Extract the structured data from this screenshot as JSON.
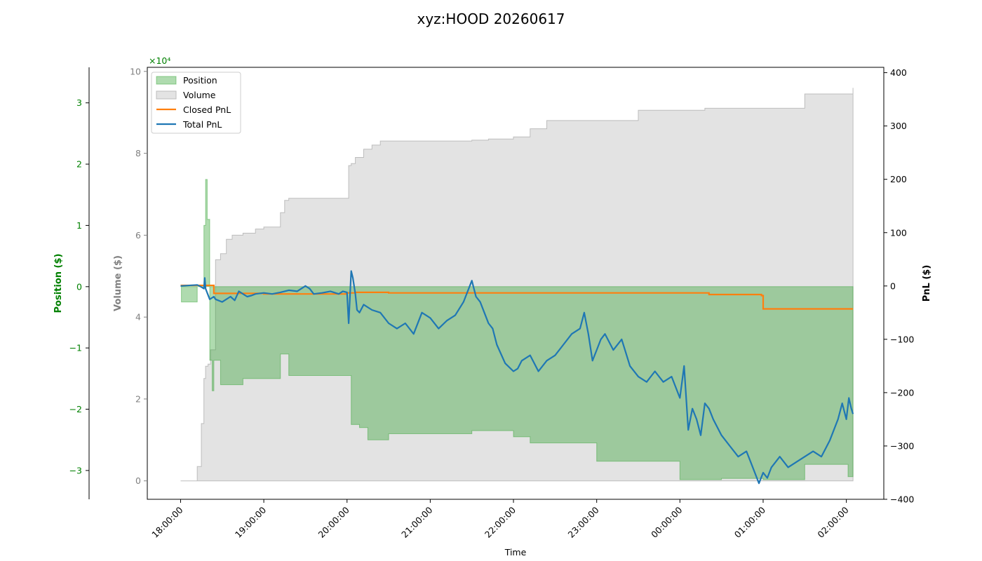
{
  "chart_data": {
    "type": "line",
    "title": "xyz:HOOD 20260617",
    "xlabel": "Time",
    "x_ticks": [
      "18:00:00",
      "19:00:00",
      "20:00:00",
      "21:00:00",
      "22:00:00",
      "23:00:00",
      "00:00:00",
      "01:00:00",
      "02:00:00"
    ],
    "x_range_hours": [
      -0.4,
      8.45
    ],
    "axes": {
      "position": {
        "label": "Position ($)",
        "ylim": [
          -3.47,
          3.58
        ],
        "ticks": [
          -3,
          -2,
          -1,
          0,
          1,
          2,
          3
        ],
        "tick_labels": [
          "−3",
          "−2",
          "−1",
          "0",
          "1",
          "2",
          "3"
        ],
        "multiplier": "×10⁴",
        "color": "#008000"
      },
      "volume": {
        "label": "Volume ($)",
        "ylim": [
          -0.45,
          10.1
        ],
        "ticks": [
          0,
          2,
          4,
          6,
          8,
          10
        ],
        "tick_labels": [
          "0",
          "2",
          "4",
          "6",
          "8",
          "10"
        ],
        "color": "#808080"
      },
      "pnl": {
        "label": "PnL ($)",
        "ylim": [
          -400,
          410
        ],
        "ticks": [
          -400,
          -300,
          -200,
          -100,
          0,
          100,
          200,
          300,
          400
        ],
        "tick_labels": [
          "−400",
          "−300",
          "−200",
          "−100",
          "0",
          "100",
          "200",
          "300",
          "400"
        ],
        "color": "#000000"
      }
    },
    "legend": {
      "placement": "upper-left",
      "entries": [
        "Position",
        "Volume",
        "Closed PnL",
        "Total PnL"
      ]
    },
    "colors": {
      "position": "#2ca02c",
      "volume": "#c8c8c8",
      "closed_pnl": "#ff7f0e",
      "total_pnl": "#1f77b4"
    },
    "series": [
      {
        "name": "Volume",
        "unit": "x10^4 $",
        "x": [
          0,
          0.17,
          0.2,
          0.25,
          0.28,
          0.3,
          0.33,
          0.36,
          0.42,
          0.48,
          0.55,
          0.62,
          0.75,
          0.9,
          1.0,
          1.2,
          1.25,
          1.3,
          2.0,
          2.02,
          2.05,
          2.1,
          2.2,
          2.3,
          2.4,
          2.5,
          3.0,
          3.5,
          3.7,
          4.0,
          4.2,
          4.4,
          5.0,
          5.5,
          6.0,
          6.3,
          6.5,
          7.0,
          7.5,
          8.0,
          8.08
        ],
        "y": [
          0,
          0,
          0.35,
          1.4,
          2.5,
          2.8,
          2.85,
          3.2,
          5.4,
          5.55,
          5.9,
          6.0,
          6.05,
          6.15,
          6.2,
          6.55,
          6.85,
          6.9,
          6.9,
          7.7,
          7.75,
          7.9,
          8.1,
          8.2,
          8.3,
          8.3,
          8.3,
          8.32,
          8.35,
          8.4,
          8.6,
          8.8,
          8.8,
          9.05,
          9.05,
          9.1,
          9.1,
          9.1,
          9.45,
          9.45,
          9.6
        ]
      },
      {
        "name": "Position",
        "unit": "x10^4 $",
        "x": [
          0,
          0.01,
          0.16,
          0.2,
          0.25,
          0.28,
          0.3,
          0.32,
          0.35,
          0.38,
          0.4,
          0.42,
          0.48,
          0.6,
          0.75,
          1.0,
          1.2,
          1.22,
          1.3,
          2.0,
          2.05,
          2.15,
          2.25,
          2.4,
          2.5,
          3.0,
          3.5,
          4.0,
          4.2,
          5.0,
          5.5,
          6.0,
          6.3,
          6.5,
          7.0,
          7.5,
          8.0,
          8.02,
          8.08
        ],
        "y": [
          0,
          -0.25,
          -0.25,
          0,
          0,
          1.0,
          1.75,
          1.1,
          -1.2,
          -1.7,
          -1.2,
          -1.2,
          -1.6,
          -1.6,
          -1.5,
          -1.5,
          -1.1,
          -1.1,
          -1.45,
          -1.45,
          -2.25,
          -2.3,
          -2.5,
          -2.5,
          -2.4,
          -2.4,
          -2.35,
          -2.45,
          -2.55,
          -2.85,
          -2.85,
          -3.15,
          -3.15,
          -3.13,
          -3.15,
          -2.9,
          -2.9,
          -3.1,
          -3.1
        ]
      },
      {
        "name": "Closed PnL",
        "x": [
          0,
          0.3,
          0.4,
          0.45,
          1.0,
          2.0,
          2.1,
          2.5,
          3.0,
          6.3,
          6.35,
          6.9,
          6.98,
          7.0,
          8.08
        ],
        "y": [
          1,
          1,
          -14,
          -14,
          -15,
          -13,
          -12,
          -13,
          -13,
          -13,
          -16,
          -16,
          -18,
          -43,
          -43
        ]
      },
      {
        "name": "Total PnL",
        "x": [
          0,
          0.2,
          0.25,
          0.28,
          0.29,
          0.3,
          0.35,
          0.4,
          0.42,
          0.5,
          0.6,
          0.65,
          0.7,
          0.75,
          0.8,
          0.85,
          0.9,
          1.0,
          1.1,
          1.2,
          1.3,
          1.4,
          1.5,
          1.55,
          1.6,
          1.7,
          1.8,
          1.9,
          1.95,
          2.0,
          2.02,
          2.05,
          2.07,
          2.1,
          2.12,
          2.15,
          2.2,
          2.3,
          2.4,
          2.5,
          2.6,
          2.7,
          2.8,
          2.9,
          3.0,
          3.1,
          3.2,
          3.3,
          3.4,
          3.5,
          3.55,
          3.6,
          3.65,
          3.7,
          3.75,
          3.8,
          3.9,
          4.0,
          4.05,
          4.1,
          4.2,
          4.3,
          4.4,
          4.5,
          4.6,
          4.7,
          4.8,
          4.85,
          4.9,
          4.95,
          5.0,
          5.05,
          5.1,
          5.2,
          5.3,
          5.4,
          5.5,
          5.6,
          5.7,
          5.8,
          5.9,
          6.0,
          6.05,
          6.1,
          6.15,
          6.2,
          6.25,
          6.3,
          6.35,
          6.4,
          6.5,
          6.6,
          6.7,
          6.8,
          6.85,
          6.9,
          6.95,
          7.0,
          7.05,
          7.1,
          7.2,
          7.3,
          7.4,
          7.5,
          7.6,
          7.7,
          7.8,
          7.9,
          7.95,
          8.0,
          8.03,
          8.06,
          8.08
        ],
        "y": [
          0,
          2,
          -2,
          -5,
          15,
          -5,
          -25,
          -20,
          -25,
          -30,
          -20,
          -27,
          -10,
          -15,
          -20,
          -18,
          -15,
          -13,
          -15,
          -12,
          -8,
          -10,
          0,
          -5,
          -15,
          -13,
          -10,
          -15,
          -10,
          -12,
          -70,
          28,
          15,
          -15,
          -45,
          -50,
          -35,
          -45,
          -50,
          -70,
          -80,
          -70,
          -90,
          -50,
          -60,
          -80,
          -65,
          -55,
          -30,
          10,
          -20,
          -30,
          -50,
          -70,
          -80,
          -110,
          -145,
          -160,
          -155,
          -140,
          -130,
          -160,
          -140,
          -130,
          -110,
          -90,
          -80,
          -50,
          -90,
          -140,
          -120,
          -100,
          -90,
          -120,
          -100,
          -150,
          -170,
          -180,
          -160,
          -180,
          -170,
          -210,
          -150,
          -270,
          -230,
          -250,
          -280,
          -220,
          -230,
          -250,
          -280,
          -300,
          -320,
          -310,
          -330,
          -350,
          -370,
          -350,
          -360,
          -340,
          -320,
          -340,
          -330,
          -320,
          -310,
          -320,
          -290,
          -250,
          -220,
          -250,
          -210,
          -230,
          -240
        ]
      }
    ]
  }
}
